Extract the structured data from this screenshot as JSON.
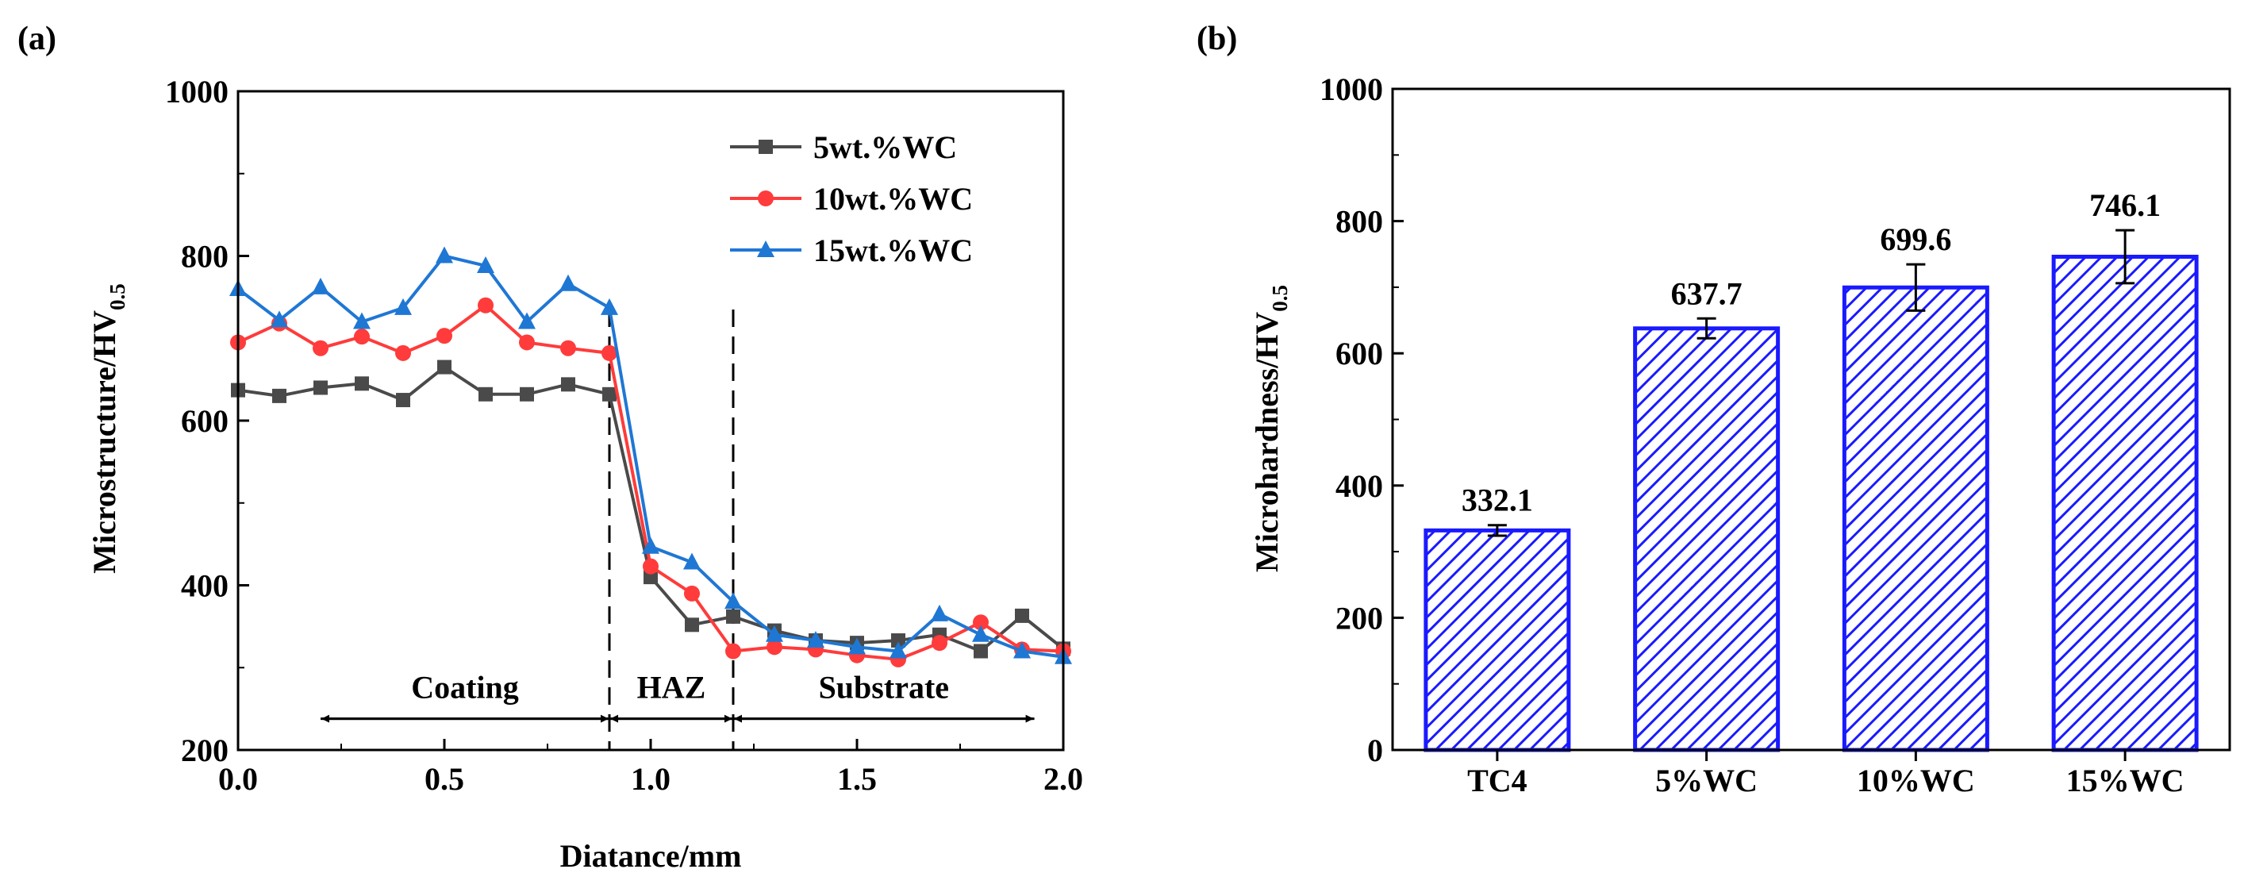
{
  "chart_data": [
    {
      "panel_label": "(a)",
      "type": "line",
      "xlabel": "Diatance/mm",
      "ylabel": {
        "main": "Microstructure/HV",
        "sub": "0.5"
      },
      "xlim": [
        0.0,
        2.0
      ],
      "ylim": [
        200,
        1000
      ],
      "xticks": [
        0.0,
        0.5,
        1.0,
        1.5,
        2.0
      ],
      "xtick_labels": [
        "0.0",
        "0.5",
        "1.0",
        "1.5",
        "2.0"
      ],
      "yticks": [
        200,
        400,
        600,
        800,
        1000
      ],
      "ytick_labels": [
        "200",
        "400",
        "600",
        "800",
        "1000"
      ],
      "x": [
        0.0,
        0.1,
        0.2,
        0.3,
        0.4,
        0.5,
        0.6,
        0.7,
        0.8,
        0.9,
        1.0,
        1.1,
        1.2,
        1.3,
        1.4,
        1.5,
        1.6,
        1.7,
        1.8,
        1.9,
        2.0
      ],
      "series": [
        {
          "name": "5wt.%WC",
          "color": "#4a4a4a",
          "marker": "square",
          "values": [
            637,
            630,
            640,
            645,
            625,
            665,
            632,
            632,
            644,
            632,
            410,
            352,
            362,
            345,
            333,
            330,
            333,
            340,
            320,
            363,
            323
          ]
        },
        {
          "name": "10wt.%WC",
          "color": "#ff3b3b",
          "marker": "circle",
          "values": [
            695,
            718,
            688,
            702,
            682,
            703,
            740,
            695,
            688,
            682,
            423,
            390,
            320,
            325,
            322,
            315,
            310,
            330,
            355,
            322,
            320
          ]
        },
        {
          "name": "15wt.%WC",
          "color": "#1f77d4",
          "marker": "triangle",
          "values": [
            760,
            722,
            762,
            720,
            737,
            800,
            788,
            720,
            766,
            737,
            447,
            428,
            380,
            340,
            333,
            325,
            320,
            365,
            340,
            320,
            313
          ]
        }
      ],
      "legend_position": "top-right",
      "annotations": [
        {
          "text": "Coating",
          "from": 0.2,
          "to": 0.9,
          "y": 238
        },
        {
          "text": "HAZ",
          "from": 0.9,
          "to": 1.2,
          "y": 238
        },
        {
          "text": "Substrate",
          "from": 1.2,
          "to": 1.93,
          "y": 238
        }
      ],
      "dividers": [
        0.9,
        1.2
      ]
    },
    {
      "panel_label": "(b)",
      "type": "bar",
      "xlabel": "",
      "ylabel": {
        "main": "Microhardness/HV",
        "sub": "0.5"
      },
      "ylim": [
        0,
        1000
      ],
      "yticks": [
        0,
        200,
        400,
        600,
        800,
        1000
      ],
      "ytick_labels": [
        "0",
        "200",
        "400",
        "600",
        "800",
        "1000"
      ],
      "categories": [
        "TC4",
        "5%WC",
        "10%WC",
        "15%WC"
      ],
      "values": [
        332.1,
        637.7,
        699.6,
        746.1
      ],
      "value_labels": [
        "332.1",
        "637.7",
        "699.6",
        "746.1"
      ],
      "errors": [
        8,
        15,
        35,
        40
      ],
      "bar_color": "#1a1aff",
      "hatch": "diagonal"
    }
  ]
}
